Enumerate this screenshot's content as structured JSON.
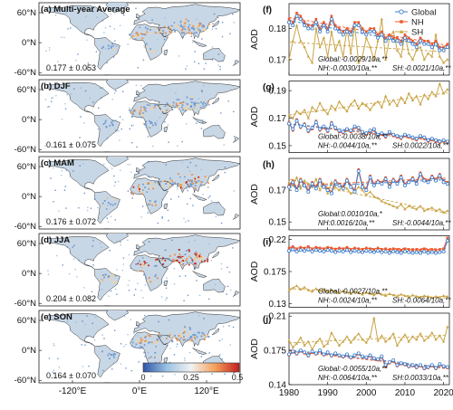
{
  "colors": {
    "global": "#3d7cc9",
    "nh": "#f0572a",
    "sh": "#c9a445",
    "land": "#c8d7e6",
    "coast": "#333333",
    "cb_low": "#2e55a8",
    "cb_mid": "#f2f2f2",
    "cb_high": "#c21f1f"
  },
  "maps": {
    "lat_ticks": [
      "60°N",
      "0°N",
      "-60°N"
    ],
    "lon_ticks": [
      "-120°E",
      "0°E",
      "120°E"
    ],
    "colorbar_ticks": [
      "0",
      "0.25",
      "0.5"
    ],
    "panels": [
      {
        "label": "(a) Multi-year Average",
        "stat": "0.177 ± 0.053",
        "hot": 0.55
      },
      {
        "label": "(b) DJF",
        "stat": "0.161 ± 0.075",
        "hot": 0.45
      },
      {
        "label": "(c) MAM",
        "stat": "0.176 ± 0.072",
        "hot": 0.65
      },
      {
        "label": "(d) JJA",
        "stat": "0.204 ± 0.082",
        "hot": 0.95
      },
      {
        "label": "(e) SON",
        "stat": "0.164 ± 0.070",
        "hot": 0.5
      }
    ]
  },
  "chart_data": [
    {
      "type": "line",
      "panel": "(f)",
      "ylabel": "AOD",
      "ylim": [
        0.165,
        0.188
      ],
      "yticks": [
        0.17,
        0.18
      ],
      "ytick_labels": [
        "0.17",
        "0.18"
      ],
      "legend": [
        "Global",
        "NH",
        "SH"
      ],
      "legend_placement": "top-right",
      "x": [
        1980,
        1981,
        1982,
        1983,
        1984,
        1985,
        1986,
        1987,
        1988,
        1989,
        1990,
        1991,
        1992,
        1993,
        1994,
        1995,
        1996,
        1997,
        1998,
        1999,
        2000,
        2001,
        2002,
        2003,
        2004,
        2005,
        2006,
        2007,
        2008,
        2009,
        2010,
        2011,
        2012,
        2013,
        2014,
        2015,
        2016,
        2017,
        2018,
        2019,
        2020,
        2021
      ],
      "series": [
        {
          "name": "Global",
          "values": [
            0.182,
            0.181,
            0.184,
            0.183,
            0.181,
            0.18,
            0.18,
            0.182,
            0.179,
            0.181,
            0.179,
            0.183,
            0.18,
            0.179,
            0.178,
            0.179,
            0.178,
            0.181,
            0.181,
            0.179,
            0.178,
            0.179,
            0.179,
            0.177,
            0.178,
            0.176,
            0.177,
            0.176,
            0.176,
            0.175,
            0.177,
            0.176,
            0.175,
            0.174,
            0.176,
            0.175,
            0.175,
            0.174,
            0.175,
            0.173,
            0.173,
            0.174
          ]
        },
        {
          "name": "NH",
          "values": [
            0.183,
            0.182,
            0.185,
            0.184,
            0.182,
            0.181,
            0.181,
            0.183,
            0.18,
            0.182,
            0.18,
            0.184,
            0.181,
            0.18,
            0.179,
            0.18,
            0.179,
            0.182,
            0.182,
            0.18,
            0.179,
            0.18,
            0.18,
            0.178,
            0.179,
            0.177,
            0.178,
            0.177,
            0.177,
            0.176,
            0.178,
            0.177,
            0.176,
            0.175,
            0.177,
            0.176,
            0.176,
            0.175,
            0.176,
            0.174,
            0.174,
            0.175
          ]
        },
        {
          "name": "SH",
          "values": [
            0.17,
            0.176,
            0.181,
            0.176,
            0.174,
            0.171,
            0.169,
            0.18,
            0.174,
            0.177,
            0.171,
            0.179,
            0.173,
            0.176,
            0.171,
            0.18,
            0.172,
            0.181,
            0.169,
            0.171,
            0.177,
            0.174,
            0.17,
            0.176,
            0.183,
            0.17,
            0.177,
            0.179,
            0.173,
            0.171,
            0.178,
            0.172,
            0.17,
            0.173,
            0.174,
            0.17,
            0.172,
            0.171,
            0.178,
            0.171,
            0.169,
            0.17
          ]
        }
      ],
      "annotations": [
        "Global:-0.0029/10a,**",
        "NH:-0.0030/10a,**",
        "SH:-0.0021/10a,**"
      ]
    },
    {
      "type": "line",
      "panel": "(g)",
      "ylabel": "AOD",
      "ylim": [
        0.145,
        0.197
      ],
      "yticks": [
        0.15,
        0.17,
        0.19
      ],
      "ytick_labels": [
        "0.15",
        "0.17",
        "0.19"
      ],
      "x": [
        1980,
        1981,
        1982,
        1983,
        1984,
        1985,
        1986,
        1987,
        1988,
        1989,
        1990,
        1991,
        1992,
        1993,
        1994,
        1995,
        1996,
        1997,
        1998,
        1999,
        2000,
        2001,
        2002,
        2003,
        2004,
        2005,
        2006,
        2007,
        2008,
        2009,
        2010,
        2011,
        2012,
        2013,
        2014,
        2015,
        2016,
        2017,
        2018,
        2019,
        2020,
        2021
      ],
      "series": [
        {
          "name": "Global",
          "values": [
            0.166,
            0.162,
            0.168,
            0.164,
            0.165,
            0.161,
            0.163,
            0.167,
            0.162,
            0.164,
            0.161,
            0.166,
            0.163,
            0.161,
            0.16,
            0.162,
            0.161,
            0.164,
            0.163,
            0.16,
            0.159,
            0.161,
            0.162,
            0.158,
            0.159,
            0.157,
            0.16,
            0.158,
            0.157,
            0.156,
            0.158,
            0.157,
            0.156,
            0.155,
            0.157,
            0.156,
            0.154,
            0.155,
            0.154,
            0.153,
            0.154,
            0.153
          ]
        },
        {
          "name": "NH",
          "values": [
            0.167,
            0.161,
            0.169,
            0.163,
            0.166,
            0.16,
            0.162,
            0.168,
            0.161,
            0.163,
            0.16,
            0.167,
            0.162,
            0.16,
            0.159,
            0.161,
            0.16,
            0.163,
            0.162,
            0.159,
            0.158,
            0.16,
            0.161,
            0.157,
            0.158,
            0.156,
            0.159,
            0.157,
            0.156,
            0.155,
            0.157,
            0.156,
            0.155,
            0.154,
            0.156,
            0.155,
            0.153,
            0.154,
            0.153,
            0.152,
            0.153,
            0.152
          ]
        },
        {
          "name": "SH",
          "values": [
            0.172,
            0.17,
            0.175,
            0.173,
            0.176,
            0.17,
            0.178,
            0.175,
            0.181,
            0.176,
            0.173,
            0.179,
            0.176,
            0.182,
            0.178,
            0.175,
            0.18,
            0.183,
            0.177,
            0.181,
            0.179,
            0.176,
            0.18,
            0.182,
            0.178,
            0.186,
            0.18,
            0.183,
            0.179,
            0.185,
            0.181,
            0.188,
            0.183,
            0.186,
            0.18,
            0.187,
            0.184,
            0.189,
            0.186,
            0.195,
            0.188,
            0.191
          ]
        }
      ],
      "annotations": [
        "Global:-0.0038/10a,**",
        "NH:-0.0044/10a,**",
        "SH:0.0022/10a,**"
      ]
    },
    {
      "type": "line",
      "panel": "(h)",
      "ylabel": "AOD",
      "ylim": [
        0.145,
        0.19
      ],
      "yticks": [
        0.15,
        0.17
      ],
      "ytick_labels": [
        "0.15",
        "0.17"
      ],
      "x": [
        1980,
        1981,
        1982,
        1983,
        1984,
        1985,
        1986,
        1987,
        1988,
        1989,
        1990,
        1991,
        1992,
        1993,
        1994,
        1995,
        1996,
        1997,
        1998,
        1999,
        2000,
        2001,
        2002,
        2003,
        2004,
        2005,
        2006,
        2007,
        2008,
        2009,
        2010,
        2011,
        2012,
        2013,
        2014,
        2015,
        2016,
        2017,
        2018,
        2019,
        2020,
        2021
      ],
      "series": [
        {
          "name": "Global",
          "values": [
            0.172,
            0.175,
            0.17,
            0.176,
            0.173,
            0.169,
            0.174,
            0.171,
            0.176,
            0.172,
            0.17,
            0.168,
            0.175,
            0.173,
            0.171,
            0.176,
            0.172,
            0.169,
            0.182,
            0.172,
            0.17,
            0.178,
            0.173,
            0.175,
            0.174,
            0.177,
            0.172,
            0.176,
            0.174,
            0.178,
            0.173,
            0.175,
            0.177,
            0.174,
            0.18,
            0.176,
            0.175,
            0.178,
            0.176,
            0.179,
            0.175,
            0.174
          ]
        },
        {
          "name": "NH",
          "values": [
            0.173,
            0.176,
            0.171,
            0.177,
            0.174,
            0.17,
            0.175,
            0.172,
            0.177,
            0.173,
            0.171,
            0.169,
            0.176,
            0.174,
            0.172,
            0.177,
            0.173,
            0.17,
            0.183,
            0.173,
            0.171,
            0.179,
            0.174,
            0.176,
            0.175,
            0.178,
            0.173,
            0.177,
            0.175,
            0.179,
            0.174,
            0.176,
            0.178,
            0.175,
            0.181,
            0.177,
            0.176,
            0.179,
            0.177,
            0.18,
            0.176,
            0.175
          ]
        },
        {
          "name": "SH",
          "values": [
            0.175,
            0.173,
            0.178,
            0.171,
            0.176,
            0.174,
            0.172,
            0.177,
            0.17,
            0.174,
            0.168,
            0.175,
            0.172,
            0.17,
            0.173,
            0.171,
            0.168,
            0.169,
            0.172,
            0.17,
            0.167,
            0.169,
            0.166,
            0.165,
            0.163,
            0.162,
            0.161,
            0.16,
            0.159,
            0.161,
            0.158,
            0.16,
            0.159,
            0.158,
            0.16,
            0.157,
            0.158,
            0.159,
            0.157,
            0.158,
            0.156,
            0.157
          ]
        }
      ],
      "annotations": [
        "Global:0.0010/10a,*",
        "NH:0.0016/10a,**",
        "SH:-0.0044/10a,**"
      ]
    },
    {
      "type": "line",
      "panel": "(i)",
      "ylabel": "AOD",
      "ylim": [
        0.125,
        0.225
      ],
      "yticks": [
        0.13,
        0.175,
        0.22
      ],
      "ytick_labels": [
        "0.13",
        "0.175",
        "0.22"
      ],
      "x": [
        1980,
        1981,
        1982,
        1983,
        1984,
        1985,
        1986,
        1987,
        1988,
        1989,
        1990,
        1991,
        1992,
        1993,
        1994,
        1995,
        1996,
        1997,
        1998,
        1999,
        2000,
        2001,
        2002,
        2003,
        2004,
        2005,
        2006,
        2007,
        2008,
        2009,
        2010,
        2011,
        2012,
        2013,
        2014,
        2015,
        2016,
        2017,
        2018,
        2019,
        2020,
        2021
      ],
      "series": [
        {
          "name": "Global",
          "values": [
            0.204,
            0.206,
            0.203,
            0.205,
            0.204,
            0.206,
            0.203,
            0.205,
            0.204,
            0.203,
            0.205,
            0.204,
            0.202,
            0.204,
            0.203,
            0.205,
            0.202,
            0.204,
            0.203,
            0.202,
            0.204,
            0.203,
            0.202,
            0.204,
            0.202,
            0.203,
            0.201,
            0.203,
            0.202,
            0.201,
            0.203,
            0.202,
            0.201,
            0.202,
            0.201,
            0.203,
            0.201,
            0.202,
            0.201,
            0.202,
            0.203,
            0.218
          ]
        },
        {
          "name": "NH",
          "values": [
            0.208,
            0.21,
            0.207,
            0.209,
            0.208,
            0.21,
            0.207,
            0.209,
            0.208,
            0.207,
            0.209,
            0.208,
            0.206,
            0.208,
            0.207,
            0.209,
            0.206,
            0.208,
            0.207,
            0.206,
            0.208,
            0.207,
            0.206,
            0.208,
            0.206,
            0.207,
            0.205,
            0.207,
            0.206,
            0.205,
            0.207,
            0.206,
            0.205,
            0.206,
            0.205,
            0.207,
            0.205,
            0.206,
            0.205,
            0.206,
            0.207,
            0.222
          ]
        },
        {
          "name": "SH",
          "values": [
            0.148,
            0.152,
            0.155,
            0.15,
            0.153,
            0.149,
            0.147,
            0.151,
            0.148,
            0.15,
            0.146,
            0.149,
            0.147,
            0.145,
            0.148,
            0.146,
            0.144,
            0.147,
            0.145,
            0.143,
            0.146,
            0.144,
            0.142,
            0.145,
            0.143,
            0.141,
            0.144,
            0.142,
            0.14,
            0.143,
            0.141,
            0.139,
            0.142,
            0.14,
            0.139,
            0.141,
            0.14,
            0.138,
            0.14,
            0.139,
            0.141,
            0.14
          ]
        }
      ],
      "annotations": [
        "Global:-0.0027/10a,**",
        "NH:-0.0024/10a,**",
        "SH:-0.0064/10a,**"
      ]
    },
    {
      "type": "line",
      "panel": "(j)",
      "ylabel": "AOD",
      "ylim": [
        0.14,
        0.213
      ],
      "yticks": [
        0.14,
        0.175,
        0.21
      ],
      "ytick_labels": [
        "0.14",
        "0.175",
        "0.21"
      ],
      "x": [
        1980,
        1981,
        1982,
        1983,
        1984,
        1985,
        1986,
        1987,
        1988,
        1989,
        1990,
        1991,
        1992,
        1993,
        1994,
        1995,
        1996,
        1997,
        1998,
        1999,
        2000,
        2001,
        2002,
        2003,
        2004,
        2005,
        2006,
        2007,
        2008,
        2009,
        2010,
        2011,
        2012,
        2013,
        2014,
        2015,
        2016,
        2017,
        2018,
        2019,
        2020,
        2021
      ],
      "series": [
        {
          "name": "Global",
          "values": [
            0.171,
            0.174,
            0.172,
            0.175,
            0.173,
            0.17,
            0.174,
            0.172,
            0.175,
            0.171,
            0.173,
            0.17,
            0.172,
            0.17,
            0.169,
            0.171,
            0.168,
            0.17,
            0.172,
            0.169,
            0.168,
            0.17,
            0.167,
            0.166,
            0.169,
            0.16,
            0.163,
            0.165,
            0.16,
            0.162,
            0.161,
            0.159,
            0.16,
            0.158,
            0.16,
            0.157,
            0.158,
            0.16,
            0.157,
            0.161,
            0.159,
            0.158
          ]
        },
        {
          "name": "NH",
          "values": [
            0.17,
            0.173,
            0.171,
            0.174,
            0.172,
            0.169,
            0.173,
            0.171,
            0.174,
            0.17,
            0.172,
            0.169,
            0.171,
            0.169,
            0.168,
            0.17,
            0.167,
            0.169,
            0.171,
            0.168,
            0.167,
            0.169,
            0.166,
            0.165,
            0.168,
            0.158,
            0.162,
            0.164,
            0.159,
            0.161,
            0.16,
            0.158,
            0.159,
            0.157,
            0.159,
            0.156,
            0.157,
            0.159,
            0.156,
            0.16,
            0.158,
            0.157
          ]
        },
        {
          "name": "SH",
          "values": [
            0.185,
            0.178,
            0.182,
            0.188,
            0.18,
            0.184,
            0.176,
            0.183,
            0.187,
            0.179,
            0.182,
            0.193,
            0.186,
            0.18,
            0.184,
            0.189,
            0.183,
            0.188,
            0.192,
            0.186,
            0.183,
            0.189,
            0.208,
            0.185,
            0.19,
            0.184,
            0.187,
            0.192,
            0.18,
            0.186,
            0.191,
            0.184,
            0.189,
            0.186,
            0.192,
            0.185,
            0.188,
            0.193,
            0.186,
            0.19,
            0.184,
            0.199
          ]
        }
      ],
      "annotations": [
        "Global:-0.0055/10a,**",
        "NH:-0.0064/10a,**",
        "SH:0.0033/10a,**"
      ]
    }
  ],
  "chart_axes": {
    "xlim": [
      1980,
      2021.5
    ],
    "xticks": [
      1980,
      1990,
      2000,
      2010,
      2020
    ],
    "xtick_labels": [
      "1980",
      "1990",
      "2000",
      "2010",
      "2020"
    ]
  }
}
